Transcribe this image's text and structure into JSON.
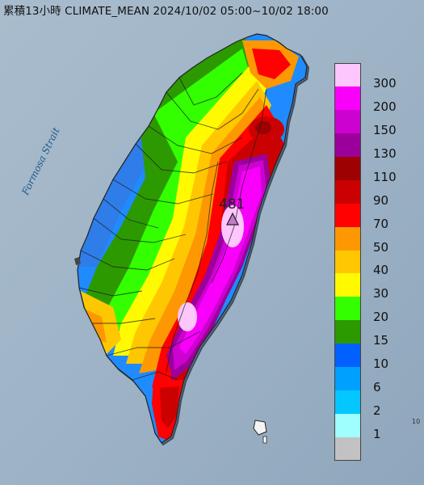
{
  "header": {
    "title": "累積13小時 CLIMATE_MEAN 2024/10/02 05:00~10/02 18:00"
  },
  "map": {
    "sea_label": "Formosa Strait",
    "max_value": "481",
    "edge_label": "10",
    "colors": {
      "sea": "#9fb3c6",
      "land_shadow": "#6d8196"
    }
  },
  "legend": {
    "items": [
      {
        "label": "300",
        "color": "#fdc6fc"
      },
      {
        "label": "200",
        "color": "#f900fb"
      },
      {
        "label": "150",
        "color": "#cc02d0"
      },
      {
        "label": "130",
        "color": "#9c009a"
      },
      {
        "label": "110",
        "color": "#9e0101"
      },
      {
        "label": "90",
        "color": "#cb0101"
      },
      {
        "label": "70",
        "color": "#fe0100"
      },
      {
        "label": "50",
        "color": "#fd9802"
      },
      {
        "label": "40",
        "color": "#ffc701"
      },
      {
        "label": "30",
        "color": "#fffa02"
      },
      {
        "label": "20",
        "color": "#33ff00"
      },
      {
        "label": "15",
        "color": "#2c9901"
      },
      {
        "label": "10",
        "color": "#0160fe"
      },
      {
        "label": "6",
        "color": "#00a0ff"
      },
      {
        "label": "2",
        "color": "#04c7ff"
      },
      {
        "label": "1",
        "color": "#9efffe"
      },
      {
        "label": "",
        "color": "#c2c2c2"
      }
    ]
  }
}
